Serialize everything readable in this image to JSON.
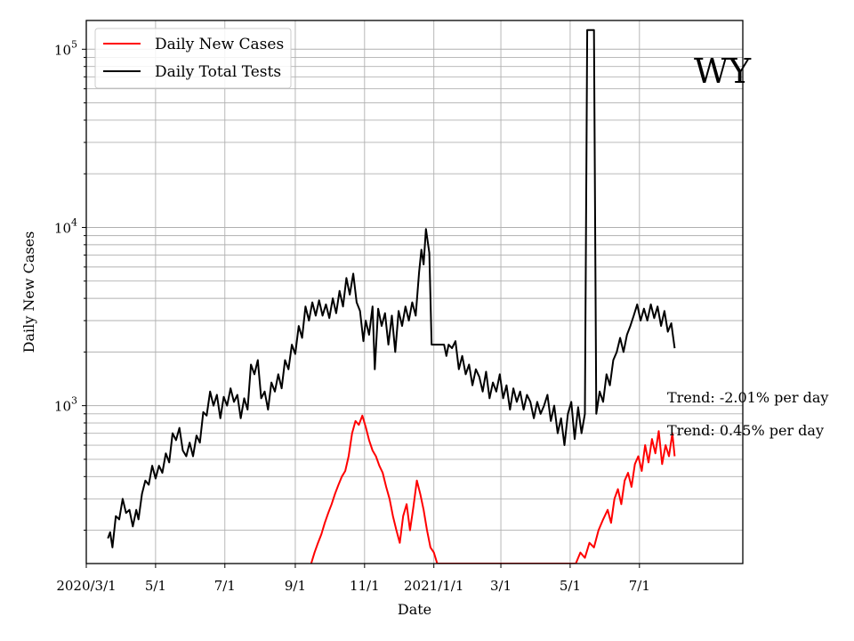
{
  "chart_data": {
    "type": "line",
    "title": "",
    "state_label": "WY",
    "xlabel": "Date",
    "ylabel": "Daily New Cases",
    "yscale": "log",
    "ylim": [
      130,
      145000
    ],
    "xlim": [
      "2020-03-01",
      "2021-09-30"
    ],
    "grid": true,
    "legend_position": "top-left",
    "x_ticks": [
      {
        "date": "2020-03-01",
        "label": "2020/3/1"
      },
      {
        "date": "2020-05-01",
        "label": "5/1"
      },
      {
        "date": "2020-07-01",
        "label": "7/1"
      },
      {
        "date": "2020-09-01",
        "label": "9/1"
      },
      {
        "date": "2020-11-01",
        "label": "11/1"
      },
      {
        "date": "2021-01-01",
        "label": "2021/1/1"
      },
      {
        "date": "2021-03-01",
        "label": "3/1"
      },
      {
        "date": "2021-05-01",
        "label": "5/1"
      },
      {
        "date": "2021-07-01",
        "label": "7/1"
      }
    ],
    "y_ticks": [
      {
        "value": 1000,
        "base": "10",
        "exp": "3"
      },
      {
        "value": 10000,
        "base": "10",
        "exp": "4"
      },
      {
        "value": 100000,
        "base": "10",
        "exp": "5"
      }
    ],
    "annotations": [
      {
        "text": "Trend: -2.01% per day"
      },
      {
        "text": "Trend: 0.45% per day"
      }
    ],
    "series": [
      {
        "name": "Daily Total Tests",
        "color": "#000000",
        "points": [
          [
            "2020-03-20",
            180
          ],
          [
            "2020-03-22",
            195
          ],
          [
            "2020-03-24",
            160
          ],
          [
            "2020-03-27",
            240
          ],
          [
            "2020-03-30",
            230
          ],
          [
            "2020-04-02",
            300
          ],
          [
            "2020-04-05",
            250
          ],
          [
            "2020-04-08",
            260
          ],
          [
            "2020-04-11",
            210
          ],
          [
            "2020-04-14",
            260
          ],
          [
            "2020-04-16",
            230
          ],
          [
            "2020-04-19",
            320
          ],
          [
            "2020-04-22",
            380
          ],
          [
            "2020-04-25",
            360
          ],
          [
            "2020-04-28",
            460
          ],
          [
            "2020-05-01",
            390
          ],
          [
            "2020-05-04",
            460
          ],
          [
            "2020-05-07",
            420
          ],
          [
            "2020-05-10",
            540
          ],
          [
            "2020-05-13",
            480
          ],
          [
            "2020-05-16",
            700
          ],
          [
            "2020-05-19",
            640
          ],
          [
            "2020-05-22",
            750
          ],
          [
            "2020-05-25",
            560
          ],
          [
            "2020-05-28",
            520
          ],
          [
            "2020-05-31",
            620
          ],
          [
            "2020-06-03",
            520
          ],
          [
            "2020-06-06",
            680
          ],
          [
            "2020-06-09",
            620
          ],
          [
            "2020-06-12",
            920
          ],
          [
            "2020-06-15",
            880
          ],
          [
            "2020-06-18",
            1200
          ],
          [
            "2020-06-21",
            1000
          ],
          [
            "2020-06-24",
            1150
          ],
          [
            "2020-06-27",
            850
          ],
          [
            "2020-06-30",
            1120
          ],
          [
            "2020-07-03",
            1000
          ],
          [
            "2020-07-06",
            1250
          ],
          [
            "2020-07-09",
            1050
          ],
          [
            "2020-07-12",
            1150
          ],
          [
            "2020-07-15",
            850
          ],
          [
            "2020-07-18",
            1100
          ],
          [
            "2020-07-21",
            950
          ],
          [
            "2020-07-24",
            1700
          ],
          [
            "2020-07-27",
            1500
          ],
          [
            "2020-07-30",
            1800
          ],
          [
            "2020-08-02",
            1100
          ],
          [
            "2020-08-05",
            1200
          ],
          [
            "2020-08-08",
            950
          ],
          [
            "2020-08-11",
            1350
          ],
          [
            "2020-08-14",
            1200
          ],
          [
            "2020-08-17",
            1500
          ],
          [
            "2020-08-20",
            1250
          ],
          [
            "2020-08-23",
            1800
          ],
          [
            "2020-08-26",
            1600
          ],
          [
            "2020-08-29",
            2200
          ],
          [
            "2020-09-01",
            1950
          ],
          [
            "2020-09-04",
            2800
          ],
          [
            "2020-09-07",
            2400
          ],
          [
            "2020-09-10",
            3600
          ],
          [
            "2020-09-13",
            3000
          ],
          [
            "2020-09-16",
            3800
          ],
          [
            "2020-09-19",
            3200
          ],
          [
            "2020-09-22",
            3900
          ],
          [
            "2020-09-25",
            3200
          ],
          [
            "2020-09-28",
            3700
          ],
          [
            "2020-10-01",
            3100
          ],
          [
            "2020-10-04",
            4000
          ],
          [
            "2020-10-07",
            3300
          ],
          [
            "2020-10-10",
            4400
          ],
          [
            "2020-10-13",
            3600
          ],
          [
            "2020-10-16",
            5200
          ],
          [
            "2020-10-19",
            4200
          ],
          [
            "2020-10-22",
            5500
          ],
          [
            "2020-10-25",
            3800
          ],
          [
            "2020-10-28",
            3400
          ],
          [
            "2020-10-31",
            2300
          ],
          [
            "2020-11-02",
            3000
          ],
          [
            "2020-11-05",
            2500
          ],
          [
            "2020-11-08",
            3600
          ],
          [
            "2020-11-10",
            1600
          ],
          [
            "2020-11-13",
            3500
          ],
          [
            "2020-11-16",
            2800
          ],
          [
            "2020-11-19",
            3300
          ],
          [
            "2020-11-22",
            2200
          ],
          [
            "2020-11-25",
            3200
          ],
          [
            "2020-11-28",
            2000
          ],
          [
            "2020-12-01",
            3400
          ],
          [
            "2020-12-04",
            2800
          ],
          [
            "2020-12-07",
            3600
          ],
          [
            "2020-12-10",
            3000
          ],
          [
            "2020-12-13",
            3800
          ],
          [
            "2020-12-16",
            3200
          ],
          [
            "2020-12-19",
            5600
          ],
          [
            "2020-12-21",
            7500
          ],
          [
            "2020-12-23",
            6200
          ],
          [
            "2020-12-25",
            9800
          ],
          [
            "2020-12-28",
            7200
          ],
          [
            "2020-12-30",
            2200
          ],
          [
            "2021-01-05",
            2200
          ],
          [
            "2021-01-10",
            2200
          ],
          [
            "2021-01-12",
            1900
          ],
          [
            "2021-01-14",
            2200
          ],
          [
            "2021-01-17",
            2100
          ],
          [
            "2021-01-20",
            2300
          ],
          [
            "2021-01-23",
            1600
          ],
          [
            "2021-01-26",
            1900
          ],
          [
            "2021-01-29",
            1500
          ],
          [
            "2021-02-01",
            1700
          ],
          [
            "2021-02-04",
            1300
          ],
          [
            "2021-02-07",
            1600
          ],
          [
            "2021-02-10",
            1450
          ],
          [
            "2021-02-13",
            1200
          ],
          [
            "2021-02-16",
            1550
          ],
          [
            "2021-02-19",
            1100
          ],
          [
            "2021-02-22",
            1350
          ],
          [
            "2021-02-25",
            1200
          ],
          [
            "2021-02-28",
            1500
          ],
          [
            "2021-03-03",
            1100
          ],
          [
            "2021-03-06",
            1300
          ],
          [
            "2021-03-09",
            950
          ],
          [
            "2021-03-12",
            1250
          ],
          [
            "2021-03-15",
            1050
          ],
          [
            "2021-03-18",
            1200
          ],
          [
            "2021-03-21",
            950
          ],
          [
            "2021-03-24",
            1150
          ],
          [
            "2021-03-27",
            1050
          ],
          [
            "2021-03-30",
            850
          ],
          [
            "2021-04-02",
            1050
          ],
          [
            "2021-04-05",
            900
          ],
          [
            "2021-04-08",
            1000
          ],
          [
            "2021-04-11",
            1150
          ],
          [
            "2021-04-14",
            820
          ],
          [
            "2021-04-17",
            1000
          ],
          [
            "2021-04-20",
            700
          ],
          [
            "2021-04-23",
            850
          ],
          [
            "2021-04-26",
            600
          ],
          [
            "2021-04-29",
            900
          ],
          [
            "2021-05-02",
            1050
          ],
          [
            "2021-05-05",
            650
          ],
          [
            "2021-05-08",
            980
          ],
          [
            "2021-05-11",
            700
          ],
          [
            "2021-05-14",
            900
          ],
          [
            "2021-05-16",
            128000
          ],
          [
            "2021-05-22",
            128000
          ],
          [
            "2021-05-24",
            900
          ],
          [
            "2021-05-27",
            1200
          ],
          [
            "2021-05-30",
            1050
          ],
          [
            "2021-06-02",
            1500
          ],
          [
            "2021-06-05",
            1300
          ],
          [
            "2021-06-08",
            1800
          ],
          [
            "2021-06-11",
            2000
          ],
          [
            "2021-06-14",
            2400
          ],
          [
            "2021-06-17",
            2000
          ],
          [
            "2021-06-20",
            2500
          ],
          [
            "2021-06-23",
            2800
          ],
          [
            "2021-06-26",
            3200
          ],
          [
            "2021-06-29",
            3700
          ],
          [
            "2021-07-02",
            3000
          ],
          [
            "2021-07-05",
            3500
          ],
          [
            "2021-07-08",
            3000
          ],
          [
            "2021-07-11",
            3700
          ],
          [
            "2021-07-14",
            3100
          ],
          [
            "2021-07-17",
            3600
          ],
          [
            "2021-07-20",
            2800
          ],
          [
            "2021-07-23",
            3400
          ],
          [
            "2021-07-26",
            2600
          ],
          [
            "2021-07-29",
            2900
          ],
          [
            "2021-08-01",
            2100
          ]
        ]
      },
      {
        "name": "Daily New Cases",
        "color": "#ff0000",
        "points": [
          [
            "2020-09-15",
            130
          ],
          [
            "2020-09-18",
            150
          ],
          [
            "2020-09-21",
            170
          ],
          [
            "2020-09-24",
            190
          ],
          [
            "2020-09-27",
            220
          ],
          [
            "2020-09-30",
            250
          ],
          [
            "2020-10-03",
            280
          ],
          [
            "2020-10-06",
            320
          ],
          [
            "2020-10-09",
            360
          ],
          [
            "2020-10-12",
            400
          ],
          [
            "2020-10-15",
            430
          ],
          [
            "2020-10-18",
            520
          ],
          [
            "2020-10-21",
            700
          ],
          [
            "2020-10-24",
            820
          ],
          [
            "2020-10-27",
            780
          ],
          [
            "2020-10-30",
            880
          ],
          [
            "2020-11-02",
            760
          ],
          [
            "2020-11-05",
            640
          ],
          [
            "2020-11-08",
            560
          ],
          [
            "2020-11-11",
            520
          ],
          [
            "2020-11-14",
            460
          ],
          [
            "2020-11-17",
            420
          ],
          [
            "2020-11-20",
            350
          ],
          [
            "2020-11-23",
            300
          ],
          [
            "2020-11-26",
            240
          ],
          [
            "2020-11-29",
            200
          ],
          [
            "2020-12-02",
            170
          ],
          [
            "2020-12-05",
            240
          ],
          [
            "2020-12-08",
            280
          ],
          [
            "2020-12-11",
            200
          ],
          [
            "2020-12-14",
            270
          ],
          [
            "2020-12-17",
            380
          ],
          [
            "2020-12-20",
            320
          ],
          [
            "2020-12-23",
            260
          ],
          [
            "2020-12-26",
            200
          ],
          [
            "2020-12-29",
            160
          ],
          [
            "2021-01-01",
            150
          ],
          [
            "2021-01-04",
            130
          ],
          [
            "2021-05-06",
            130
          ],
          [
            "2021-05-10",
            150
          ],
          [
            "2021-05-14",
            140
          ],
          [
            "2021-05-18",
            170
          ],
          [
            "2021-05-22",
            160
          ],
          [
            "2021-05-26",
            200
          ],
          [
            "2021-05-30",
            230
          ],
          [
            "2021-06-03",
            260
          ],
          [
            "2021-06-06",
            220
          ],
          [
            "2021-06-09",
            300
          ],
          [
            "2021-06-12",
            340
          ],
          [
            "2021-06-15",
            280
          ],
          [
            "2021-06-18",
            380
          ],
          [
            "2021-06-21",
            420
          ],
          [
            "2021-06-24",
            350
          ],
          [
            "2021-06-27",
            470
          ],
          [
            "2021-06-30",
            520
          ],
          [
            "2021-07-03",
            430
          ],
          [
            "2021-07-06",
            600
          ],
          [
            "2021-07-09",
            480
          ],
          [
            "2021-07-12",
            650
          ],
          [
            "2021-07-15",
            540
          ],
          [
            "2021-07-18",
            720
          ],
          [
            "2021-07-21",
            470
          ],
          [
            "2021-07-24",
            600
          ],
          [
            "2021-07-27",
            520
          ],
          [
            "2021-07-30",
            700
          ],
          [
            "2021-08-01",
            520
          ]
        ]
      }
    ]
  }
}
